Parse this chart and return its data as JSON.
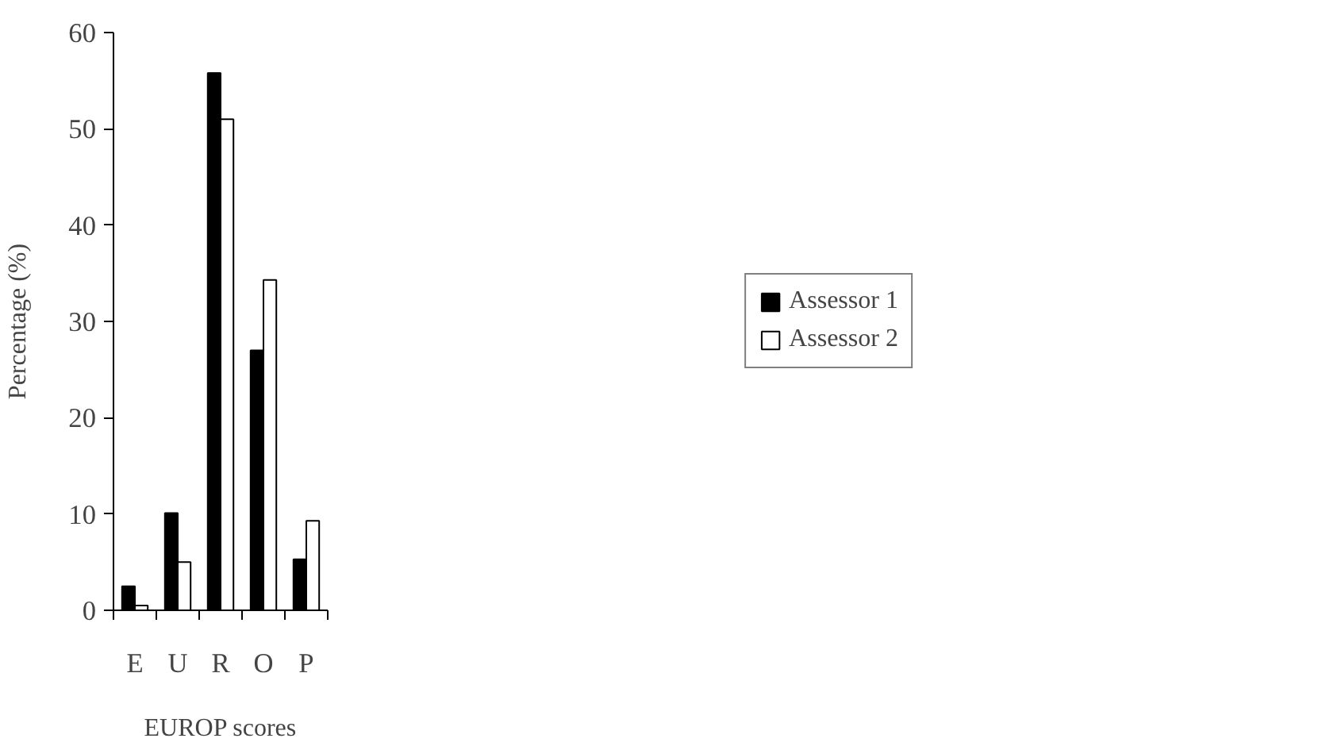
{
  "chart_data": {
    "type": "bar",
    "xlabel": "EUROP scores",
    "ylabel": "Percentage (%)",
    "categories": [
      "E",
      "U",
      "R",
      "O",
      "P"
    ],
    "series": [
      {
        "name": "Assessor 1",
        "color": "#000000",
        "values": [
          2.5,
          10.1,
          55.8,
          27.0,
          5.3
        ]
      },
      {
        "name": "Assessor 2",
        "color": "#ffffff",
        "values": [
          0.5,
          5.0,
          51.0,
          34.3,
          9.3
        ]
      }
    ],
    "ylim": [
      0,
      60
    ],
    "yticks": [
      0,
      10,
      20,
      30,
      40,
      50,
      60
    ],
    "legend": "right"
  }
}
